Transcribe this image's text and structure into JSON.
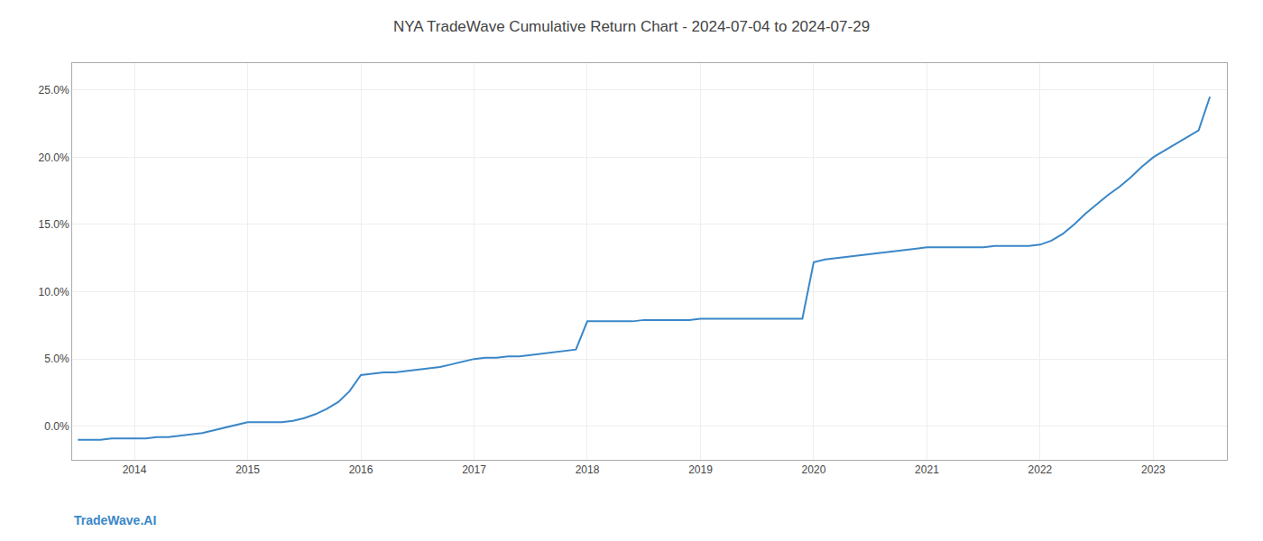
{
  "chart_data": {
    "type": "line",
    "title": "NYA TradeWave Cumulative Return Chart - 2024-07-04 to 2024-07-29",
    "annotations": [
      {
        "text": "TradeWave.AI",
        "color": "#3a87c8"
      }
    ],
    "x": [
      2013.5,
      2013.6,
      2013.7,
      2013.8,
      2013.9,
      2014.0,
      2014.1,
      2014.2,
      2014.3,
      2014.4,
      2014.5,
      2014.6,
      2014.7,
      2014.8,
      2014.9,
      2015.0,
      2015.1,
      2015.2,
      2015.3,
      2015.4,
      2015.5,
      2015.6,
      2015.7,
      2015.8,
      2015.9,
      2016.0,
      2016.1,
      2016.2,
      2016.3,
      2016.4,
      2016.5,
      2016.6,
      2016.7,
      2016.8,
      2016.9,
      2017.0,
      2017.1,
      2017.2,
      2017.3,
      2017.4,
      2017.5,
      2017.6,
      2017.7,
      2017.8,
      2017.9,
      2018.0,
      2018.1,
      2018.2,
      2018.3,
      2018.4,
      2018.5,
      2018.6,
      2018.7,
      2018.8,
      2018.9,
      2019.0,
      2019.1,
      2019.2,
      2019.3,
      2019.4,
      2019.5,
      2019.6,
      2019.7,
      2019.8,
      2019.9,
      2020.0,
      2020.1,
      2020.2,
      2020.3,
      2020.4,
      2020.5,
      2020.6,
      2020.7,
      2020.8,
      2020.9,
      2021.0,
      2021.1,
      2021.2,
      2021.3,
      2021.4,
      2021.5,
      2021.6,
      2021.7,
      2021.8,
      2021.9,
      2022.0,
      2022.1,
      2022.2,
      2022.3,
      2022.4,
      2022.5,
      2022.6,
      2022.7,
      2022.8,
      2022.9,
      2023.0,
      2023.1,
      2023.2,
      2023.3,
      2023.4,
      2023.5
    ],
    "values": [
      -0.01,
      -0.01,
      -0.01,
      -0.009,
      -0.009,
      -0.009,
      -0.009,
      -0.008,
      -0.008,
      -0.007,
      -0.006,
      -0.005,
      -0.003,
      -0.001,
      0.001,
      0.003,
      0.003,
      0.003,
      0.003,
      0.004,
      0.006,
      0.009,
      0.013,
      0.018,
      0.026,
      0.038,
      0.039,
      0.04,
      0.04,
      0.041,
      0.042,
      0.043,
      0.044,
      0.046,
      0.048,
      0.05,
      0.051,
      0.051,
      0.052,
      0.052,
      0.053,
      0.054,
      0.055,
      0.056,
      0.057,
      0.078,
      0.078,
      0.078,
      0.078,
      0.078,
      0.079,
      0.079,
      0.079,
      0.079,
      0.079,
      0.08,
      0.08,
      0.08,
      0.08,
      0.08,
      0.08,
      0.08,
      0.08,
      0.08,
      0.08,
      0.122,
      0.124,
      0.125,
      0.126,
      0.127,
      0.128,
      0.129,
      0.13,
      0.131,
      0.132,
      0.133,
      0.133,
      0.133,
      0.133,
      0.133,
      0.133,
      0.134,
      0.134,
      0.134,
      0.134,
      0.135,
      0.138,
      0.143,
      0.15,
      0.158,
      0.165,
      0.172,
      0.178,
      0.185,
      0.193,
      0.2,
      0.205,
      0.21,
      0.215,
      0.22,
      0.245
    ],
    "color": "#3a87c8",
    "xlim": [
      2013.45,
      2023.65
    ],
    "xticks": [
      2014,
      2015,
      2016,
      2017,
      2018,
      2019,
      2020,
      2021,
      2022,
      2023
    ],
    "ylim": [
      -0.025,
      0.27
    ],
    "yticks": [
      {
        "value": 0.0,
        "label": "0.0%"
      },
      {
        "value": 0.05,
        "label": "5.0%"
      },
      {
        "value": 0.1,
        "label": "10.0%"
      },
      {
        "value": 0.15,
        "label": "15.0%"
      },
      {
        "value": 0.2,
        "label": "20.0%"
      },
      {
        "value": 0.25,
        "label": "25.0%"
      }
    ],
    "grid": true
  }
}
